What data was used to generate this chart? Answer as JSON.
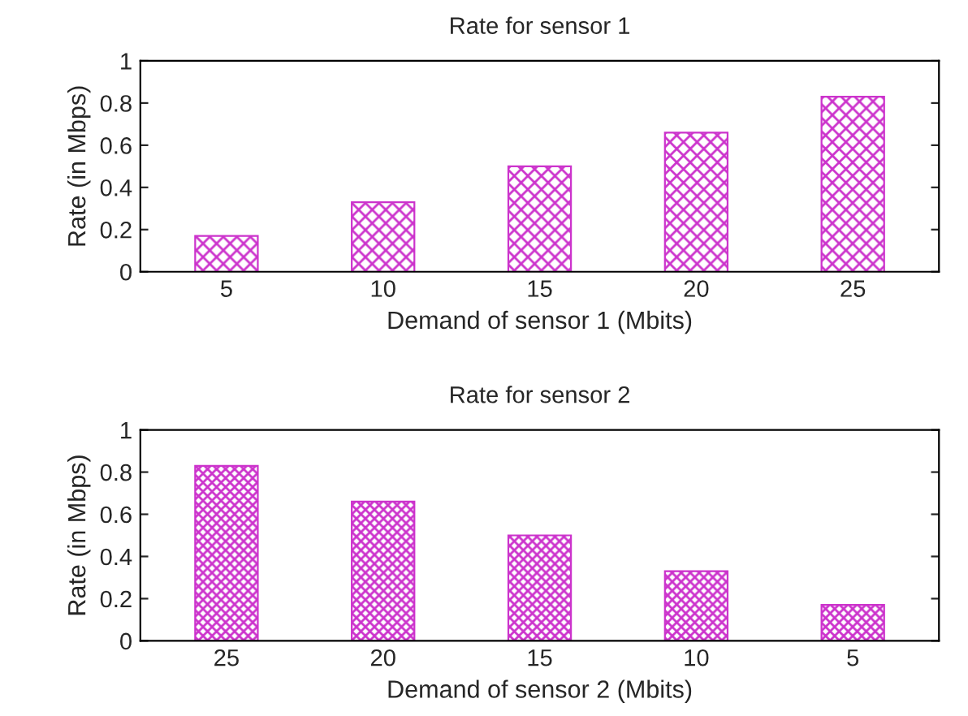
{
  "chart_data": [
    {
      "type": "bar",
      "title": "Rate for sensor 1",
      "xlabel": "Demand of sensor 1 (Mbits)",
      "ylabel": "Rate (in Mbps)",
      "categories": [
        "5",
        "10",
        "15",
        "20",
        "25"
      ],
      "series": [
        {
          "color": "#cc33cc",
          "values": [
            0.17,
            0.33,
            0.5,
            0.66,
            0.83
          ]
        }
      ],
      "ylim": [
        0,
        1
      ],
      "yticks": [
        0,
        0.2,
        0.4,
        0.6,
        0.8,
        1
      ],
      "grid": false
    },
    {
      "type": "bar",
      "title": "Rate for sensor 2",
      "xlabel": "Demand of sensor 2 (Mbits)",
      "ylabel": "Rate (in Mbps)",
      "categories": [
        "25",
        "20",
        "15",
        "10",
        "5"
      ],
      "series": [
        {
          "color": "#cc33cc",
          "values": [
            0.83,
            0.66,
            0.5,
            0.33,
            0.17
          ]
        }
      ],
      "ylim": [
        0,
        1
      ],
      "yticks": [
        0,
        0.2,
        0.4,
        0.6,
        0.8,
        1
      ],
      "grid": false
    }
  ]
}
